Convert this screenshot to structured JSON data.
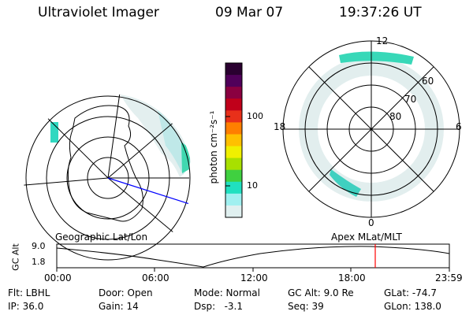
{
  "header": {
    "instrument": "Ultraviolet Imager",
    "date": "09 Mar 07",
    "time": "19:37:26 UT"
  },
  "left_map": {
    "caption": "Geographic Lat/Lon"
  },
  "right_map": {
    "caption": "Apex  MLat/MLT",
    "mlt_labels": [
      "12",
      "18",
      "6",
      "0"
    ],
    "lat_labels": [
      "60",
      "70",
      "80"
    ]
  },
  "colorbar": {
    "unit_label": "photon cm⁻²s⁻¹",
    "tick_labels": [
      "100",
      "10"
    ],
    "colors": [
      "#2a0030",
      "#50005a",
      "#8a0040",
      "#c0001a",
      "#e8301a",
      "#ff7f00",
      "#ffc000",
      "#f0f000",
      "#a8e000",
      "#40d040",
      "#20e0c0",
      "#a0f0f0",
      "#e0f0f0"
    ]
  },
  "timeline": {
    "y_axis_label": "GC Alt",
    "y_ticks": [
      "9.0",
      "1.8"
    ],
    "x_ticks": [
      "00:00",
      "06:00",
      "12:00",
      "18:00",
      "23:59"
    ],
    "current_marker_color": "#ff0000"
  },
  "info": {
    "flt": "Flt: LBHL",
    "ip": "IP: 36.0",
    "door": "Door: Open",
    "gain": "Gain: 14",
    "mode": "Mode: Normal",
    "dsp": "Dsp:   -3.1",
    "gcalt": "GC Alt: 9.0 Re",
    "seq": "Seq: 39",
    "glat": "GLat: -74.7",
    "glon": "GLon: 138.0"
  }
}
